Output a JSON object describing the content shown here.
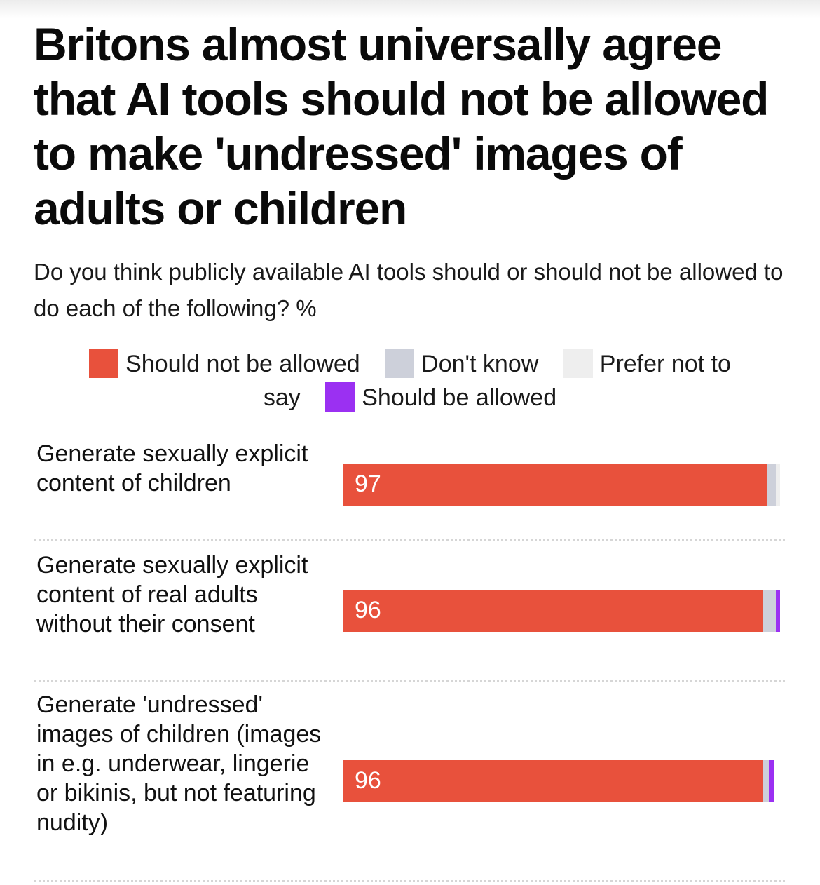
{
  "chart_data": {
    "type": "bar",
    "orientation": "horizontal",
    "stacked": true,
    "title": "Britons almost universally agree that AI tools should not be allowed to make 'undressed' images of adults or children",
    "subtitle": "Do you think publicly available AI tools should or should not be allowed to do each of the following? %",
    "legend_position": "top",
    "xlim": [
      0,
      100
    ],
    "categories": [
      "Generate sexually explicit content of children",
      "Generate sexually explicit content of real adults without their consent",
      "Generate 'undressed' images of children (images in e.g. underwear, lingerie or bikinis, but not featuring nudity)"
    ],
    "series": [
      {
        "name": "Should not be allowed",
        "color": "#e8513c",
        "values": [
          97,
          96,
          96
        ],
        "labels": [
          "97",
          "96",
          "96"
        ]
      },
      {
        "name": "Don't know",
        "color": "#cdd0da",
        "values": [
          2,
          3,
          1.5
        ]
      },
      {
        "name": "Prefer not to say",
        "color": "#eeeeee",
        "values": [
          1,
          0,
          0
        ]
      },
      {
        "name": "Should be allowed",
        "color": "#9b30f2",
        "values": [
          0,
          1,
          1
        ]
      }
    ]
  },
  "legend": {
    "should_not": "Should not be allowed",
    "dont_know": "Don't know",
    "prefer_part1": "Prefer not to",
    "prefer_part2": "say",
    "should": "Should be allowed"
  }
}
